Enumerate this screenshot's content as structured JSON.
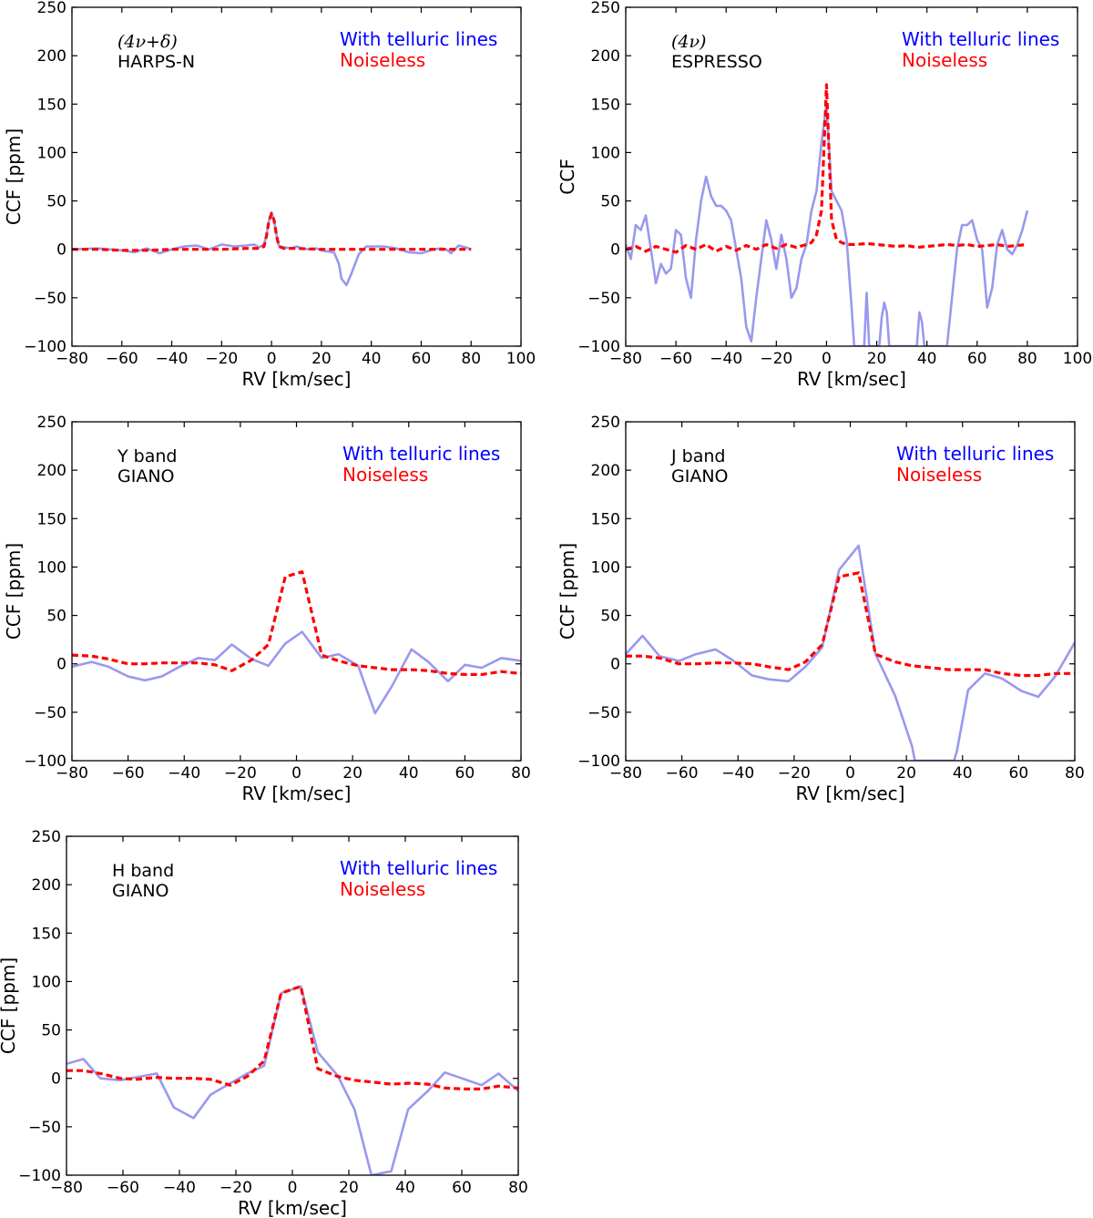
{
  "chart_data": [
    {
      "type": "line",
      "panel": "top-left",
      "line1": "(4ν+δ)",
      "line2": "HARPS-N",
      "legend": [
        "With telluric lines",
        "Noiseless"
      ],
      "xlabel": "RV [km/sec]",
      "ylabel": "CCF [ppm]",
      "xlim": [
        -80,
        100
      ],
      "ylim": [
        -100,
        250
      ],
      "xticks": [
        "−80",
        "−60",
        "−40",
        "−20",
        "0",
        "20",
        "40",
        "60",
        "80",
        "100"
      ],
      "yticks": [
        "−100",
        "−50",
        "0",
        "50",
        "100",
        "150",
        "200",
        "250"
      ],
      "series": [
        {
          "name": "With telluric lines",
          "color": "#9999ee",
          "dash": "solid",
          "x": [
            -80,
            -70,
            -60,
            -55,
            -50,
            -45,
            -40,
            -35,
            -30,
            -25,
            -20,
            -15,
            -10,
            -7,
            -5,
            -3,
            -2,
            -1,
            0,
            1,
            2,
            3,
            5,
            8,
            10,
            12,
            15,
            18,
            20,
            22,
            25,
            27,
            28,
            30,
            32,
            35,
            38,
            40,
            45,
            50,
            55,
            60,
            65,
            68,
            70,
            72,
            75,
            78,
            80
          ],
          "y": [
            0,
            1,
            -1,
            -3,
            1,
            -4,
            0,
            3,
            4,
            0,
            5,
            3,
            4,
            5,
            2,
            5,
            15,
            30,
            38,
            30,
            15,
            3,
            2,
            1,
            3,
            1,
            0,
            1,
            -1,
            -2,
            -3,
            -15,
            -30,
            -37,
            -25,
            -5,
            3,
            3,
            3,
            1,
            -3,
            -4,
            0,
            1,
            0,
            -4,
            4,
            2,
            0
          ]
        },
        {
          "name": "Noiseless",
          "color": "#ff0000",
          "dash": "dashed",
          "x": [
            -80,
            -70,
            -60,
            -50,
            -40,
            -30,
            -20,
            -10,
            -5,
            -3,
            -2,
            -1,
            0,
            1,
            2,
            3,
            5,
            10,
            20,
            30,
            40,
            50,
            60,
            70,
            80
          ],
          "y": [
            0,
            0,
            -1,
            -1,
            0,
            0,
            0,
            1,
            1,
            3,
            14,
            30,
            37,
            30,
            14,
            3,
            1,
            1,
            0,
            0,
            0,
            0,
            0,
            0,
            0
          ]
        }
      ]
    },
    {
      "type": "line",
      "panel": "top-right",
      "line1": "(4ν)",
      "line2": "ESPRESSO",
      "legend": [
        "With telluric lines",
        "Noiseless"
      ],
      "xlabel": "RV [km/sec]",
      "ylabel": "CCF",
      "xlim": [
        -80,
        100
      ],
      "ylim": [
        -100,
        250
      ],
      "xticks": [
        "−80",
        "−60",
        "−40",
        "−20",
        "0",
        "20",
        "40",
        "60",
        "80",
        "100"
      ],
      "yticks": [
        "−100",
        "−50",
        "0",
        "50",
        "100",
        "150",
        "200",
        "250"
      ],
      "series": [
        {
          "name": "With telluric lines",
          "color": "#9999ee",
          "dash": "solid",
          "x": [
            -80,
            -78,
            -76,
            -74,
            -72,
            -70,
            -68,
            -66,
            -64,
            -62,
            -60,
            -58,
            -56,
            -54,
            -52,
            -50,
            -48,
            -46,
            -44,
            -42,
            -40,
            -38,
            -36,
            -34,
            -32,
            -30,
            -28,
            -26,
            -24,
            -22,
            -20,
            -18,
            -16,
            -14,
            -12,
            -10,
            -8,
            -6,
            -4,
            -2,
            0,
            2,
            4,
            6,
            8,
            10,
            11,
            12,
            14,
            15,
            16,
            17,
            18,
            19,
            20,
            21,
            22,
            23,
            24,
            25,
            26,
            28,
            30,
            32,
            34,
            35,
            36,
            37,
            38,
            39,
            40,
            41,
            42,
            44,
            46,
            48,
            50,
            52,
            54,
            56,
            58,
            60,
            62,
            64,
            66,
            68,
            70,
            72,
            74,
            76,
            78,
            80
          ],
          "y": [
            5,
            -10,
            25,
            20,
            35,
            0,
            -35,
            -15,
            -25,
            -20,
            20,
            15,
            -30,
            -50,
            10,
            50,
            75,
            55,
            45,
            45,
            40,
            30,
            0,
            -30,
            -80,
            -95,
            -50,
            -10,
            30,
            10,
            -20,
            15,
            -10,
            -50,
            -40,
            -10,
            5,
            40,
            60,
            110,
            150,
            60,
            50,
            40,
            10,
            -60,
            -100,
            -100,
            -100,
            -100,
            -45,
            -100,
            -100,
            -100,
            -100,
            -100,
            -70,
            -55,
            -65,
            -100,
            -100,
            -100,
            -100,
            -100,
            -100,
            -100,
            -100,
            -65,
            -75,
            -100,
            -100,
            -100,
            -100,
            -100,
            -100,
            -100,
            -50,
            0,
            25,
            25,
            30,
            10,
            0,
            -60,
            -40,
            5,
            20,
            0,
            -5,
            5,
            20,
            40
          ]
        },
        {
          "name": "Noiseless",
          "color": "#ff0000",
          "dash": "dashed",
          "x": [
            -80,
            -76,
            -72,
            -68,
            -64,
            -60,
            -56,
            -52,
            -48,
            -44,
            -40,
            -36,
            -32,
            -28,
            -24,
            -20,
            -16,
            -12,
            -8,
            -6,
            -4,
            -2,
            0,
            2,
            4,
            6,
            8,
            12,
            16,
            20,
            24,
            28,
            32,
            36,
            40,
            44,
            48,
            52,
            56,
            60,
            64,
            68,
            72,
            76,
            80
          ],
          "y": [
            0,
            3,
            -2,
            3,
            0,
            -3,
            4,
            0,
            5,
            -2,
            3,
            -1,
            4,
            0,
            5,
            1,
            5,
            2,
            5,
            7,
            15,
            40,
            170,
            30,
            10,
            7,
            5,
            5,
            6,
            5,
            4,
            3,
            4,
            2,
            3,
            4,
            5,
            4,
            5,
            3,
            4,
            5,
            3,
            4,
            5
          ]
        }
      ]
    },
    {
      "type": "line",
      "panel": "middle-left",
      "line1": "Y band",
      "line2": "GIANO",
      "legend": [
        "With telluric lines",
        "Noiseless"
      ],
      "xlabel": "RV [km/sec]",
      "ylabel": "CCF [ppm]",
      "xlim": [
        -80,
        80
      ],
      "ylim": [
        -100,
        250
      ],
      "xticks": [
        "−80",
        "−60",
        "−40",
        "−20",
        "0",
        "20",
        "40",
        "60",
        "80"
      ],
      "yticks": [
        "−100",
        "−50",
        "0",
        "50",
        "100",
        "150",
        "200",
        "250"
      ],
      "series": [
        {
          "name": "With telluric lines",
          "color": "#9999ee",
          "dash": "solid",
          "x": [
            -80,
            -73,
            -67,
            -60,
            -54,
            -48,
            -41,
            -35,
            -29,
            -23,
            -16,
            -10,
            -4,
            2,
            9,
            15,
            22,
            28,
            34,
            41,
            47,
            54,
            60,
            66,
            73,
            80
          ],
          "y": [
            -3,
            2,
            -3,
            -13,
            -17,
            -13,
            -2,
            6,
            4,
            20,
            5,
            -2,
            21,
            33,
            6,
            10,
            -2,
            -51,
            -23,
            15,
            2,
            -18,
            -1,
            -4,
            6,
            3
          ]
        },
        {
          "name": "Noiseless",
          "color": "#ff0000",
          "dash": "dashed",
          "x": [
            -80,
            -73,
            -67,
            -60,
            -54,
            -48,
            -41,
            -35,
            -29,
            -23,
            -16,
            -10,
            -4,
            2,
            9,
            15,
            22,
            28,
            34,
            41,
            47,
            54,
            60,
            66,
            73,
            80
          ],
          "y": [
            9,
            8,
            5,
            0,
            0,
            1,
            1,
            1,
            -1,
            -7,
            4,
            20,
            90,
            95,
            9,
            3,
            -2,
            -4,
            -6,
            -6,
            -7,
            -10,
            -11,
            -11,
            -8,
            -10
          ]
        }
      ]
    },
    {
      "type": "line",
      "panel": "middle-right",
      "line1": "J band",
      "line2": "GIANO",
      "legend": [
        "With telluric lines",
        "Noiseless"
      ],
      "xlabel": "RV [km/sec]",
      "ylabel": "CCF [ppm]",
      "xlim": [
        -80,
        80
      ],
      "ylim": [
        -100,
        250
      ],
      "xticks": [
        "−80",
        "−60",
        "−40",
        "−20",
        "0",
        "20",
        "40",
        "60",
        "80"
      ],
      "yticks": [
        "−100",
        "−50",
        "0",
        "50",
        "100",
        "150",
        "200",
        "250"
      ],
      "series": [
        {
          "name": "With telluric lines",
          "color": "#9999ee",
          "dash": "solid",
          "x": [
            -80,
            -74,
            -68,
            -61,
            -55,
            -48,
            -42,
            -35,
            -29,
            -22,
            -16,
            -10,
            -4,
            3,
            9,
            16,
            22,
            23,
            37,
            38,
            42,
            48,
            54,
            61,
            67,
            73,
            80
          ],
          "y": [
            10,
            29,
            8,
            3,
            10,
            15,
            4,
            -12,
            -16,
            -18,
            -3,
            17,
            97,
            122,
            10,
            -33,
            -85,
            -100,
            -100,
            -90,
            -27,
            -10,
            -15,
            -28,
            -34,
            -13,
            22
          ]
        },
        {
          "name": "Noiseless",
          "color": "#ff0000",
          "dash": "dashed",
          "x": [
            -80,
            -74,
            -68,
            -61,
            -55,
            -48,
            -42,
            -35,
            -29,
            -22,
            -16,
            -10,
            -4,
            3,
            9,
            16,
            22,
            29,
            35,
            42,
            48,
            54,
            61,
            67,
            73,
            80
          ],
          "y": [
            8,
            8,
            6,
            0,
            0,
            1,
            1,
            0,
            -3,
            -6,
            2,
            20,
            90,
            94,
            10,
            2,
            -2,
            -4,
            -6,
            -6,
            -6,
            -10,
            -12,
            -12,
            -10,
            -10
          ]
        }
      ]
    },
    {
      "type": "line",
      "panel": "bottom-left",
      "line1": "H band",
      "line2": "GIANO",
      "legend": [
        "With telluric lines",
        "Noiseless"
      ],
      "xlabel": "RV [km/sec]",
      "ylabel": "CCF [ppm]",
      "xlim": [
        -80,
        80
      ],
      "ylim": [
        -100,
        250
      ],
      "xticks": [
        "−80",
        "−60",
        "−40",
        "−20",
        "0",
        "20",
        "40",
        "60",
        "80"
      ],
      "yticks": [
        "−100",
        "−50",
        "0",
        "50",
        "100",
        "150",
        "200",
        "250"
      ],
      "series": [
        {
          "name": "With telluric lines",
          "color": "#9999ee",
          "dash": "solid",
          "x": [
            -80,
            -74,
            -68,
            -61,
            -48,
            -42,
            -35,
            -29,
            -16,
            -10,
            -4,
            3,
            9,
            16,
            22,
            28,
            35,
            41,
            48,
            54,
            60,
            67,
            73,
            80
          ],
          "y": [
            15,
            20,
            0,
            -2,
            5,
            -30,
            -41,
            -17,
            5,
            13,
            88,
            95,
            27,
            3,
            -32,
            -100,
            -96,
            -32,
            -13,
            6,
            0,
            -7,
            5,
            -13
          ]
        },
        {
          "name": "Noiseless",
          "color": "#ff0000",
          "dash": "dashed",
          "x": [
            -80,
            -74,
            -68,
            -61,
            -55,
            -48,
            -42,
            -35,
            -29,
            -22,
            -16,
            -10,
            -4,
            3,
            9,
            16,
            22,
            29,
            35,
            42,
            48,
            54,
            61,
            67,
            73,
            80
          ],
          "y": [
            8,
            8,
            5,
            0,
            -1,
            1,
            0,
            0,
            -1,
            -7,
            2,
            18,
            88,
            95,
            10,
            2,
            -2,
            -4,
            -6,
            -5,
            -6,
            -10,
            -11,
            -11,
            -8,
            -10
          ]
        }
      ]
    }
  ]
}
